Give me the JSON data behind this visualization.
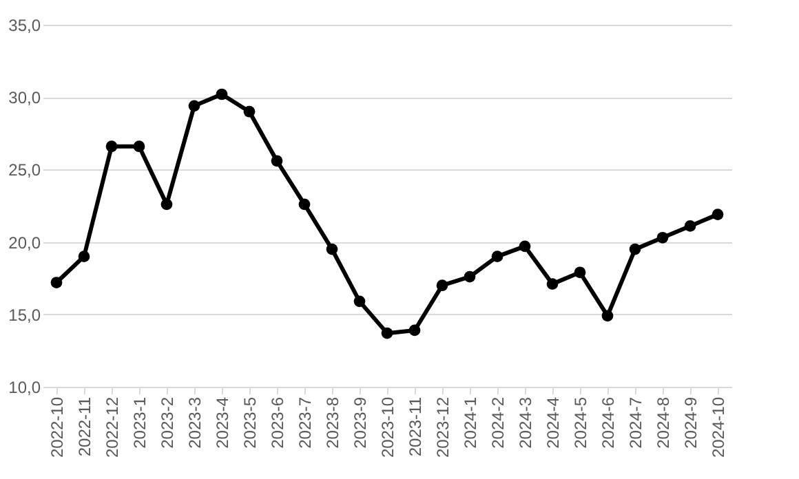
{
  "chart_data": {
    "type": "line",
    "categories": [
      "2022-10",
      "2022-11",
      "2022-12",
      "2023-1",
      "2023-2",
      "2023-3",
      "2023-4",
      "2023-5",
      "2023-6",
      "2023-7",
      "2023-8",
      "2023-9",
      "2023-10",
      "2023-11",
      "2023-12",
      "2024-1",
      "2024-2",
      "2024-3",
      "2024-4",
      "2024-5",
      "2024-6",
      "2024-7",
      "2024-8",
      "2024-9",
      "2024-10"
    ],
    "series": [
      {
        "color": "#000000",
        "values": [
          17.2,
          19.0,
          26.6,
          26.6,
          22.6,
          29.4,
          30.2,
          29.0,
          25.6,
          22.6,
          19.5,
          15.9,
          13.7,
          13.9,
          17.0,
          17.6,
          19.0,
          19.7,
          17.1,
          17.9,
          14.9,
          19.5,
          20.3,
          21.1,
          21.9
        ]
      }
    ],
    "ylim": [
      10,
      35
    ],
    "yticks": [
      {
        "value": 10,
        "label": "10,0"
      },
      {
        "value": 15,
        "label": "15,0"
      },
      {
        "value": 20,
        "label": "20,0"
      },
      {
        "value": 25,
        "label": "25,0"
      },
      {
        "value": 30,
        "label": "30,0"
      },
      {
        "value": 35,
        "label": "35,0"
      }
    ],
    "grid": "y",
    "marker": "circle",
    "line_style": "solid"
  }
}
